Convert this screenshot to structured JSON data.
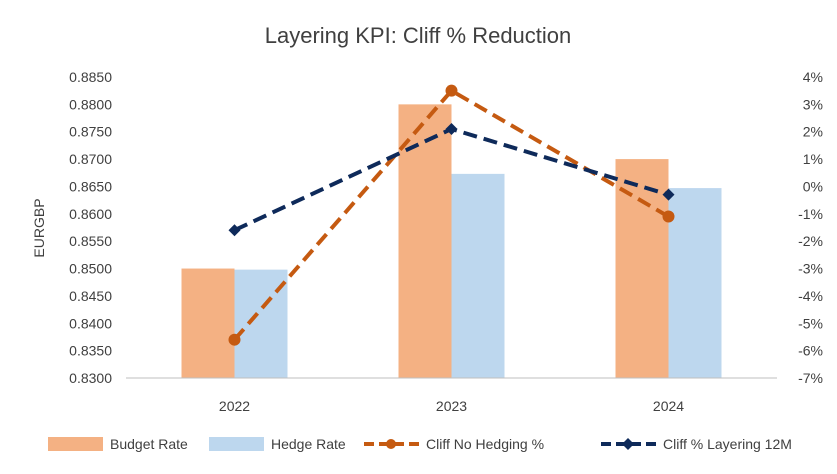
{
  "chart_data": {
    "type": "bar",
    "title": "Layering KPI: Cliff % Reduction",
    "ylabel": "EURGBP",
    "categories": [
      "2022",
      "2023",
      "2024"
    ],
    "ylim": [
      0.83,
      0.885
    ],
    "y_ticks": [
      "0.8850",
      "0.8800",
      "0.8750",
      "0.8700",
      "0.8650",
      "0.8600",
      "0.8550",
      "0.8500",
      "0.8450",
      "0.8400",
      "0.8350",
      "0.8300"
    ],
    "y2lim": [
      -7,
      4
    ],
    "y2_ticks": [
      "4%",
      "3%",
      "2%",
      "1%",
      "0%",
      "-1%",
      "-2%",
      "-3%",
      "-4%",
      "-5%",
      "-6%",
      "-7%"
    ],
    "series": [
      {
        "name": "Budget Rate",
        "kind": "bar",
        "axis": "left",
        "color": "#f4b183",
        "values": [
          0.85,
          0.88,
          0.87
        ]
      },
      {
        "name": "Hedge Rate",
        "kind": "bar",
        "axis": "left",
        "color": "#bdd7ee",
        "values": [
          0.8498,
          0.8673,
          0.8647
        ]
      },
      {
        "name": "Cliff No Hedging  %",
        "kind": "line",
        "axis": "right",
        "style": "dashed",
        "marker": "circle",
        "color": "#c55a11",
        "values": [
          -5.6,
          3.5,
          -1.1
        ]
      },
      {
        "name": "Cliff % Layering 12M",
        "kind": "line",
        "axis": "right",
        "style": "dashed",
        "marker": "diamond",
        "color": "#0e2a5a",
        "values": [
          -1.6,
          2.1,
          -0.3
        ]
      }
    ],
    "legend_position": "bottom",
    "grid": false
  }
}
